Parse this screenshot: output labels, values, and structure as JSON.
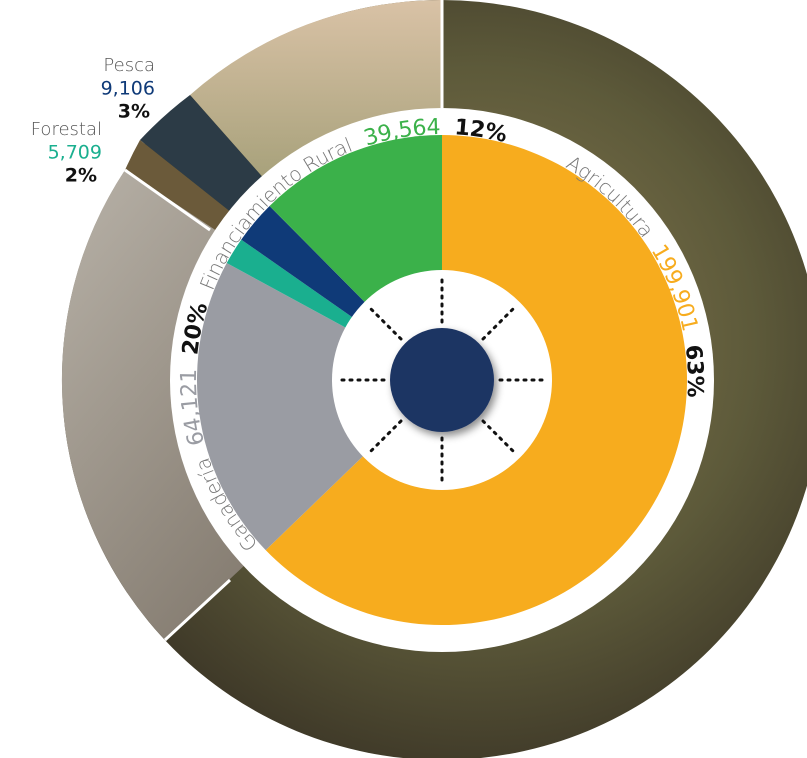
{
  "chart_data": {
    "type": "pie",
    "categories": [
      "Agricultura",
      "Ganadería",
      "Forestal",
      "Pesca",
      "Financiamiento Rural"
    ],
    "values": [
      199901,
      64121,
      5709,
      9106,
      39564
    ],
    "value_labels": [
      "199,901",
      "64,121",
      "5,709",
      "9,106",
      "39,564"
    ],
    "percentages": [
      63,
      20,
      2,
      3,
      12
    ],
    "percentage_labels": [
      "63%",
      "20%",
      "2%",
      "3%",
      "12%"
    ],
    "colors": [
      "#f7ac1e",
      "#9a9ca3",
      "#1aaf8f",
      "#0f3a78",
      "#3bb14a"
    ]
  }
}
